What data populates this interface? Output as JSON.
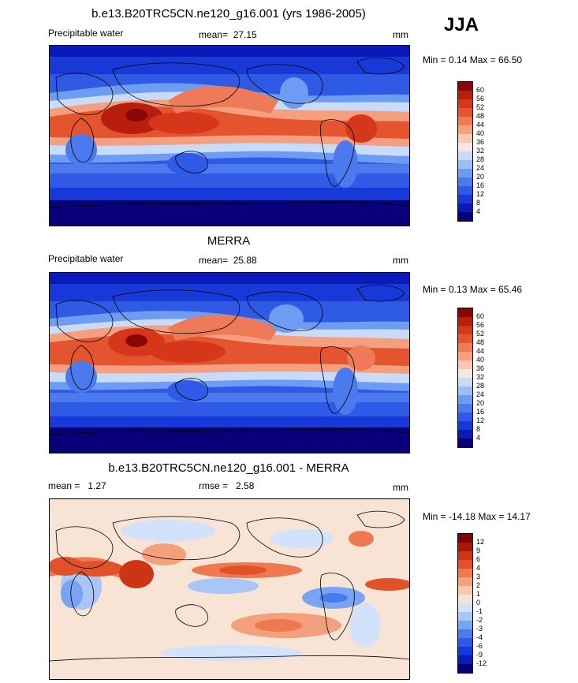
{
  "season": "JJA",
  "colors": {
    "precip": [
      "#08007a",
      "#0a1ab8",
      "#1838d8",
      "#2e5ae6",
      "#4a7aee",
      "#6e9cf2",
      "#9cbef6",
      "#c8dcfa",
      "#f6e8e0",
      "#f8c8b0",
      "#f4a080",
      "#ee7a58",
      "#e4542e",
      "#d6361a",
      "#b81e0e",
      "#8a0606"
    ],
    "diff": [
      "#08007a",
      "#0a1ab8",
      "#1838d8",
      "#2e5ae6",
      "#4a7aee",
      "#7aa4f2",
      "#a8c6f6",
      "#d2e2fa",
      "#f8e4d4",
      "#f8c8aa",
      "#f4a07c",
      "#ee7850",
      "#e2522a",
      "#cc3414",
      "#a81a08",
      "#800404"
    ]
  },
  "panels": [
    {
      "id": "model",
      "title": "b.e13.B20TRC5CN.ne120_g16.001 (yrs 1986-2005)",
      "left_label": "Precipitable water",
      "stat_label": "mean=",
      "stat_value": "27.15",
      "unit": "mm",
      "minmax_text": "Min =   0.14 Max =  66.50",
      "levels": [
        "60",
        "56",
        "52",
        "48",
        "44",
        "40",
        "36",
        "32",
        "28",
        "24",
        "20",
        "16",
        "12",
        "8",
        "4"
      ]
    },
    {
      "id": "obs",
      "title": "MERRA",
      "left_label": "Precipitable water",
      "stat_label": "mean=",
      "stat_value": "25.88",
      "unit": "mm",
      "minmax_text": "Min =   0.13 Max =  65.46",
      "levels": [
        "60",
        "56",
        "52",
        "48",
        "44",
        "40",
        "36",
        "32",
        "28",
        "24",
        "20",
        "16",
        "12",
        "8",
        "4"
      ]
    },
    {
      "id": "diff",
      "title": "b.e13.B20TRC5CN.ne120_g16.001 - MERRA",
      "left_label": "mean =",
      "left_value": "1.27",
      "stat_label": "rmse =",
      "stat_value": "2.58",
      "unit": "mm",
      "minmax_text": "Min = -14.18 Max =  14.17",
      "levels": [
        "12",
        "9",
        "6",
        "4",
        "3",
        "2",
        "1",
        "0",
        "-1",
        "-2",
        "-3",
        "-4",
        "-6",
        "-9",
        "-12"
      ]
    }
  ],
  "chart_data": [
    {
      "type": "heatmap",
      "title": "b.e13.B20TRC5CN.ne120_g16.001 (yrs 1986-2005)",
      "variable": "Precipitable water",
      "units": "mm",
      "mean": 27.15,
      "min": 0.14,
      "max": 66.5,
      "contour_levels": [
        4,
        8,
        12,
        16,
        20,
        24,
        28,
        32,
        36,
        40,
        44,
        48,
        52,
        56,
        60
      ]
    },
    {
      "type": "heatmap",
      "title": "MERRA",
      "variable": "Precipitable water",
      "units": "mm",
      "mean": 25.88,
      "min": 0.13,
      "max": 65.46,
      "contour_levels": [
        4,
        8,
        12,
        16,
        20,
        24,
        28,
        32,
        36,
        40,
        44,
        48,
        52,
        56,
        60
      ]
    },
    {
      "type": "heatmap",
      "title": "b.e13.B20TRC5CN.ne120_g16.001 - MERRA",
      "units": "mm",
      "mean": 1.27,
      "rmse": 2.58,
      "min": -14.18,
      "max": 14.17,
      "contour_levels": [
        -12,
        -9,
        -6,
        -4,
        -3,
        -2,
        -1,
        0,
        1,
        2,
        3,
        4,
        6,
        9,
        12
      ]
    }
  ]
}
